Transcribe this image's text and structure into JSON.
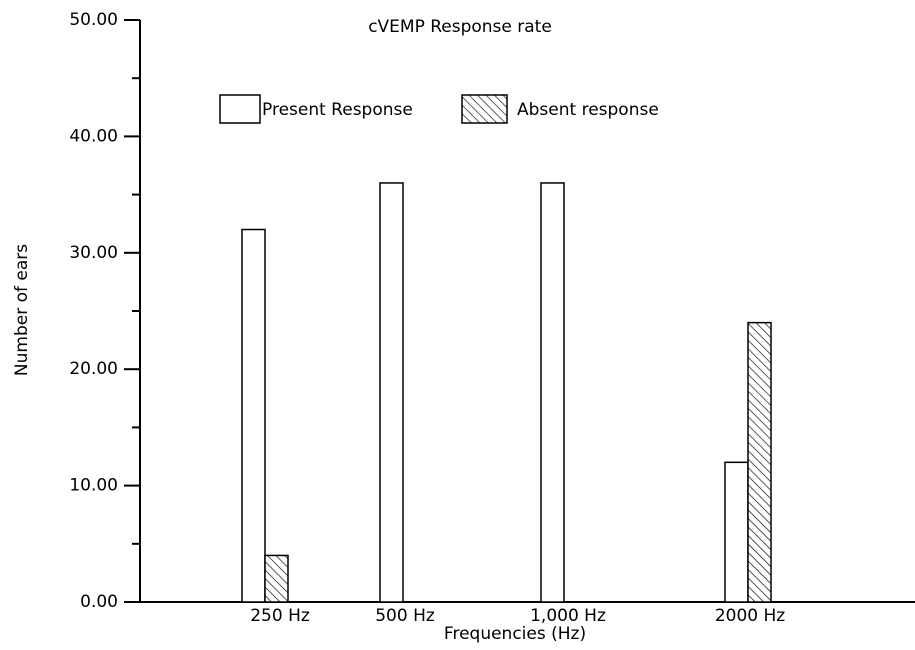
{
  "chart_data": {
    "type": "bar",
    "title": "cVEMP Response rate",
    "x_label": "Frequencies (Hz)",
    "y_label": "Number of ears",
    "categories": [
      "250 Hz",
      "500 Hz",
      "1,000 Hz",
      "2000 Hz"
    ],
    "series": [
      {
        "name": "Present Response",
        "color": "#ffffff",
        "pattern": "none",
        "values": [
          32,
          36,
          36,
          12
        ]
      },
      {
        "name": "Absent response",
        "color": "#ffffff",
        "pattern": "hatch",
        "values": [
          4,
          0,
          0,
          24
        ]
      }
    ],
    "ylim": [
      0,
      50
    ],
    "yticks": [
      {
        "value": 0,
        "label": "0.00"
      },
      {
        "value": 10,
        "label": "10.00"
      },
      {
        "value": 20,
        "label": "20.00"
      },
      {
        "value": 30,
        "label": "30.00"
      },
      {
        "value": 40,
        "label": "40.00"
      },
      {
        "value": 50,
        "label": "50.00"
      }
    ],
    "yminorticks": [
      5,
      15,
      25,
      35,
      45
    ]
  }
}
